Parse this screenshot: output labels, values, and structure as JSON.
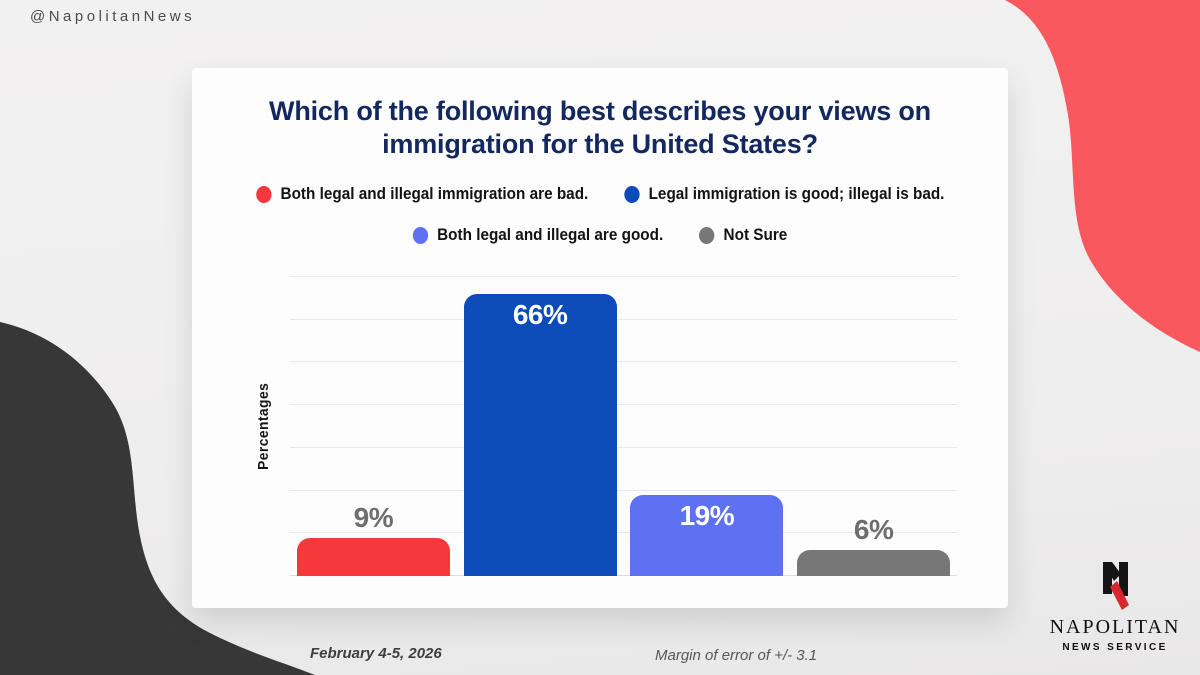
{
  "header": {
    "handle": "@NapolitanNews"
  },
  "chart_data": {
    "type": "bar",
    "title": "Which of the following best describes your views on immigration for the United States?",
    "xlabel": "",
    "ylabel": "Percentages",
    "ylim": [
      0,
      70
    ],
    "gridline_step": 10,
    "grid": true,
    "legend_position": "top",
    "categories": [
      "Both legal and illegal immigration are bad.",
      "Legal immigration is good; illegal is bad.",
      "Both legal and illegal are good.",
      "Not Sure"
    ],
    "values": [
      9,
      66,
      19,
      6
    ],
    "value_labels": [
      "9%",
      "66%",
      "19%",
      "6%"
    ],
    "colors": [
      "#F6383C",
      "#0C4CB8",
      "#5E71F2",
      "#777777"
    ],
    "legend_rows": [
      [
        0,
        1
      ],
      [
        2,
        3
      ]
    ]
  },
  "footer": {
    "date": "February 4-5, 2026",
    "margin_of_error": "Margin of error of +/- 3.1"
  },
  "logo": {
    "name": "NAPOLITAN",
    "tagline": "NEWS SERVICE"
  },
  "colors": {
    "background": "#EFEEEE",
    "card": "#FDFDFD",
    "title_navy": "#13285E",
    "coral_blob": "#F9595E",
    "dark_blob": "#373737",
    "gridline": "#E8E8E8",
    "logo_red": "#D7282F"
  }
}
